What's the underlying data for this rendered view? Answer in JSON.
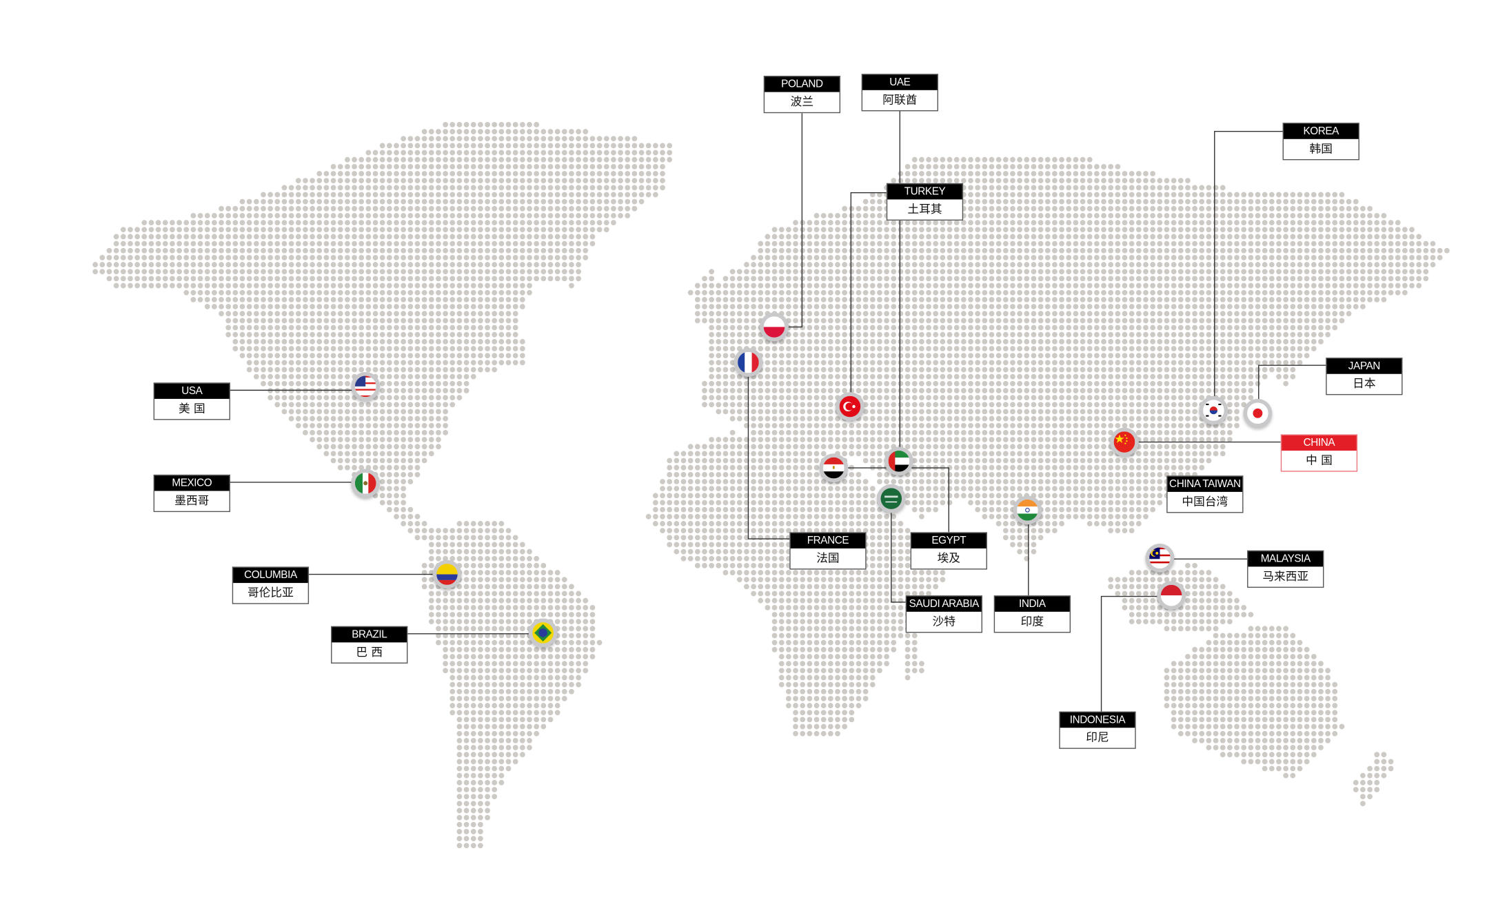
{
  "map": {
    "dot_color": "#cdcac6",
    "line_color": "#333333",
    "highlight_color": "#e31e26"
  },
  "countries": [
    {
      "key": "usa",
      "en": "USA",
      "zh": "美 国",
      "flag": "usa-flag"
    },
    {
      "key": "mexico",
      "en": "MEXICO",
      "zh": "墨西哥",
      "flag": "mexico-flag"
    },
    {
      "key": "columbia",
      "en": "COLUMBIA",
      "zh": "哥伦比亚",
      "flag": "colombia-flag"
    },
    {
      "key": "brazil",
      "en": "BRAZIL",
      "zh": "巴 西",
      "flag": "brazil-flag"
    },
    {
      "key": "poland",
      "en": "POLAND",
      "zh": "波兰",
      "flag": "poland-flag"
    },
    {
      "key": "uae",
      "en": "UAE",
      "zh": "阿联酋",
      "flag": "uae-flag"
    },
    {
      "key": "turkey",
      "en": "TURKEY",
      "zh": "土耳其",
      "flag": "turkey-flag"
    },
    {
      "key": "france",
      "en": "FRANCE",
      "zh": "法国",
      "flag": "france-flag"
    },
    {
      "key": "egypt",
      "en": "EGYPT",
      "zh": "埃及",
      "flag": "egypt-flag"
    },
    {
      "key": "saudi",
      "en": "SAUDI ARABIA",
      "zh": "沙特",
      "flag": "saudi-flag"
    },
    {
      "key": "india",
      "en": "INDIA",
      "zh": "印度",
      "flag": "india-flag"
    },
    {
      "key": "korea",
      "en": "KOREA",
      "zh": "韩国",
      "flag": "korea-flag"
    },
    {
      "key": "japan",
      "en": "JAPAN",
      "zh": "日本",
      "flag": "japan-flag"
    },
    {
      "key": "china",
      "en": "CHINA",
      "zh": "中 国",
      "flag": "china-flag",
      "highlight": true
    },
    {
      "key": "taiwan",
      "en": "CHINA TAIWAN",
      "zh": "中国台湾"
    },
    {
      "key": "malaysia",
      "en": "MALAYSIA",
      "zh": "马来西亚",
      "flag": "malaysia-flag"
    },
    {
      "key": "indonesia",
      "en": "INDONESIA",
      "zh": "印尼",
      "flag": "indonesia-flag"
    }
  ]
}
